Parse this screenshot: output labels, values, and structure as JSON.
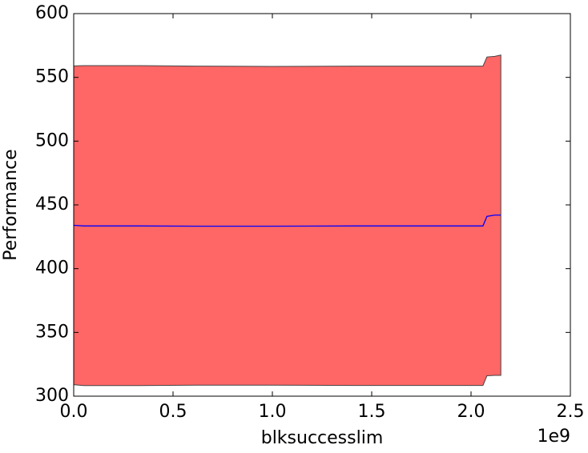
{
  "chart_data": {
    "type": "line",
    "x_label": "blksuccesslim",
    "y_label": "Performance",
    "x_offset_label": "1e9",
    "x": [
      0,
      50000000,
      330000000,
      620000000,
      1000000000,
      1420000000,
      2060000000,
      2080000000,
      2120000000,
      2150000000
    ],
    "series": [
      {
        "color": "#0000ff",
        "band_color": "#ff6666",
        "band_edge": "#444444",
        "values": [
          434,
          433.5,
          433.5,
          433.3,
          433.3,
          433.5,
          433.5,
          441,
          442,
          442
        ],
        "upper": [
          559,
          559.2,
          559.2,
          558.8,
          558.6,
          558.8,
          558.8,
          566,
          566.5,
          567.5
        ],
        "lower": [
          309,
          308.3,
          308.3,
          308.6,
          308.6,
          308.4,
          308.4,
          316,
          316.3,
          316.3
        ]
      }
    ],
    "xlim": [
      0,
      2500000000
    ],
    "ylim": [
      300,
      600
    ],
    "xticks": [
      {
        "value": 0,
        "label": "0.0"
      },
      {
        "value": 500000000,
        "label": "0.5"
      },
      {
        "value": 1000000000,
        "label": "1.0"
      },
      {
        "value": 1500000000,
        "label": "1.5"
      },
      {
        "value": 2000000000,
        "label": "2.0"
      },
      {
        "value": 2500000000,
        "label": "2.5"
      }
    ],
    "yticks": [
      300,
      350,
      400,
      450,
      500,
      550,
      600
    ]
  }
}
